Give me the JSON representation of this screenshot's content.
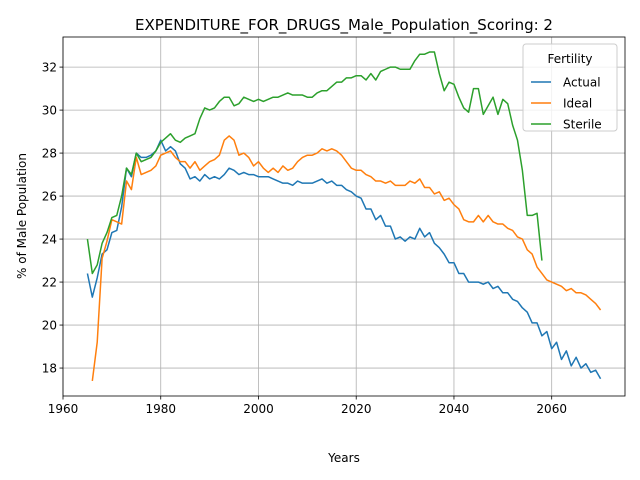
{
  "chart_data": {
    "type": "line",
    "title": "EXPENDITURE_FOR_DRUGS_Male_Population_Scoring: 2",
    "xlabel": "Years",
    "ylabel": "% of Male Population",
    "xlim": [
      1960,
      2075
    ],
    "ylim": [
      16.7,
      33.4
    ],
    "xticks": [
      1960,
      1980,
      2000,
      2020,
      2040,
      2060
    ],
    "yticks": [
      18,
      20,
      22,
      24,
      26,
      28,
      30,
      32
    ],
    "grid": true,
    "legend": {
      "title": "Fertility",
      "placement": "top-right"
    },
    "series": [
      {
        "name": "Actual",
        "color": "#1f77b4",
        "x": [
          1965,
          1966,
          1967,
          1968,
          1969,
          1970,
          1971,
          1972,
          1973,
          1974,
          1975,
          1976,
          1977,
          1978,
          1979,
          1980,
          1981,
          1982,
          1983,
          1984,
          1985,
          1986,
          1987,
          1988,
          1989,
          1990,
          1991,
          1992,
          1993,
          1994,
          1995,
          1996,
          1997,
          1998,
          1999,
          2000,
          2001,
          2002,
          2003,
          2004,
          2005,
          2006,
          2007,
          2008,
          2009,
          2010,
          2011,
          2012,
          2013,
          2014,
          2015,
          2016,
          2017,
          2018,
          2019,
          2020,
          2021,
          2022,
          2023,
          2024,
          2025,
          2026,
          2027,
          2028,
          2029,
          2030,
          2031,
          2032,
          2033,
          2034,
          2035,
          2036,
          2037,
          2038,
          2039,
          2040,
          2041,
          2042,
          2043,
          2044,
          2045,
          2046,
          2047,
          2048,
          2049,
          2050,
          2051,
          2052,
          2053,
          2054,
          2055,
          2056,
          2057,
          2058,
          2059,
          2060,
          2061,
          2062,
          2063,
          2064,
          2065,
          2066,
          2067,
          2068,
          2069,
          2070
        ],
        "values": [
          22.4,
          21.3,
          22.2,
          23.3,
          23.5,
          24.3,
          24.4,
          25.5,
          27.3,
          26.9,
          28.0,
          27.8,
          27.8,
          27.9,
          28.1,
          28.6,
          28.1,
          28.3,
          28.1,
          27.5,
          27.3,
          26.8,
          26.9,
          26.7,
          27.0,
          26.8,
          26.9,
          26.8,
          27.0,
          27.3,
          27.2,
          27.0,
          27.1,
          27.0,
          27.0,
          26.9,
          26.9,
          26.9,
          26.8,
          26.7,
          26.6,
          26.6,
          26.5,
          26.7,
          26.6,
          26.6,
          26.6,
          26.7,
          26.8,
          26.6,
          26.7,
          26.5,
          26.5,
          26.3,
          26.2,
          26.0,
          25.9,
          25.4,
          25.4,
          24.9,
          25.1,
          24.6,
          24.6,
          24.0,
          24.1,
          23.9,
          24.1,
          24.0,
          24.5,
          24.1,
          24.3,
          23.8,
          23.6,
          23.3,
          22.9,
          22.9,
          22.4,
          22.4,
          22.0,
          22.0,
          22.0,
          21.9,
          22.0,
          21.7,
          21.8,
          21.5,
          21.5,
          21.2,
          21.1,
          20.8,
          20.6,
          20.1,
          20.1,
          19.5,
          19.7,
          18.9,
          19.2,
          18.4,
          18.8,
          18.1,
          18.5,
          18.0,
          18.2,
          17.8,
          17.9,
          17.5
        ]
      },
      {
        "name": "Ideal",
        "color": "#ff7f0e",
        "x": [
          1966,
          1967,
          1968,
          1969,
          1970,
          1971,
          1972,
          1973,
          1974,
          1975,
          1976,
          1977,
          1978,
          1979,
          1980,
          1981,
          1982,
          1983,
          1984,
          1985,
          1986,
          1987,
          1988,
          1989,
          1990,
          1991,
          1992,
          1993,
          1994,
          1995,
          1996,
          1997,
          1998,
          1999,
          2000,
          2001,
          2002,
          2003,
          2004,
          2005,
          2006,
          2007,
          2008,
          2009,
          2010,
          2011,
          2012,
          2013,
          2014,
          2015,
          2016,
          2017,
          2018,
          2019,
          2020,
          2021,
          2022,
          2023,
          2024,
          2025,
          2026,
          2027,
          2028,
          2029,
          2030,
          2031,
          2032,
          2033,
          2034,
          2035,
          2036,
          2037,
          2038,
          2039,
          2040,
          2041,
          2042,
          2043,
          2044,
          2045,
          2046,
          2047,
          2048,
          2049,
          2050,
          2051,
          2052,
          2053,
          2054,
          2055,
          2056,
          2057,
          2058,
          2059,
          2060,
          2061,
          2062,
          2063,
          2064,
          2065,
          2066,
          2067,
          2068,
          2069,
          2070
        ],
        "values": [
          17.4,
          19.2,
          23.1,
          23.9,
          24.9,
          24.8,
          24.7,
          26.7,
          26.3,
          27.8,
          27.0,
          27.1,
          27.2,
          27.4,
          27.9,
          28.0,
          28.1,
          27.8,
          27.6,
          27.6,
          27.3,
          27.6,
          27.2,
          27.4,
          27.6,
          27.7,
          27.9,
          28.6,
          28.8,
          28.6,
          27.9,
          28.0,
          27.8,
          27.4,
          27.6,
          27.3,
          27.1,
          27.3,
          27.1,
          27.4,
          27.2,
          27.3,
          27.6,
          27.8,
          27.9,
          27.9,
          28.0,
          28.2,
          28.1,
          28.2,
          28.1,
          27.9,
          27.6,
          27.3,
          27.2,
          27.2,
          27.0,
          26.9,
          26.7,
          26.7,
          26.6,
          26.7,
          26.5,
          26.5,
          26.5,
          26.7,
          26.6,
          26.8,
          26.4,
          26.4,
          26.1,
          26.2,
          25.8,
          25.9,
          25.6,
          25.4,
          24.9,
          24.8,
          24.8,
          25.1,
          24.8,
          25.1,
          24.8,
          24.7,
          24.7,
          24.5,
          24.4,
          24.1,
          24.0,
          23.5,
          23.3,
          22.7,
          22.4,
          22.1,
          22.0,
          21.9,
          21.8,
          21.6,
          21.7,
          21.5,
          21.5,
          21.4,
          21.2,
          21.0,
          20.7
        ]
      },
      {
        "name": "Sterile",
        "color": "#2ca02c",
        "x": [
          1965,
          1966,
          1967,
          1968,
          1969,
          1970,
          1971,
          1972,
          1973,
          1974,
          1975,
          1976,
          1977,
          1978,
          1979,
          1980,
          1981,
          1982,
          1983,
          1984,
          1985,
          1986,
          1987,
          1988,
          1989,
          1990,
          1991,
          1992,
          1993,
          1994,
          1995,
          1996,
          1997,
          1998,
          1999,
          2000,
          2001,
          2002,
          2003,
          2004,
          2005,
          2006,
          2007,
          2008,
          2009,
          2010,
          2011,
          2012,
          2013,
          2014,
          2015,
          2016,
          2017,
          2018,
          2019,
          2020,
          2021,
          2022,
          2023,
          2024,
          2025,
          2026,
          2027,
          2028,
          2029,
          2030,
          2031,
          2032,
          2033,
          2034,
          2035,
          2036,
          2037,
          2038,
          2039,
          2040,
          2041,
          2042,
          2043,
          2044,
          2045,
          2046,
          2047,
          2048,
          2049,
          2050,
          2051,
          2052,
          2053,
          2054,
          2055,
          2056,
          2057,
          2058
        ],
        "values": [
          24.0,
          22.4,
          22.8,
          23.8,
          24.3,
          25.0,
          25.1,
          26.0,
          27.3,
          27.0,
          28.0,
          27.6,
          27.7,
          27.8,
          28.1,
          28.5,
          28.7,
          28.9,
          28.6,
          28.5,
          28.7,
          28.8,
          28.9,
          29.6,
          30.1,
          30.0,
          30.1,
          30.4,
          30.6,
          30.6,
          30.2,
          30.3,
          30.6,
          30.5,
          30.4,
          30.5,
          30.4,
          30.5,
          30.6,
          30.6,
          30.7,
          30.8,
          30.7,
          30.7,
          30.7,
          30.6,
          30.6,
          30.8,
          30.9,
          30.9,
          31.1,
          31.3,
          31.3,
          31.5,
          31.5,
          31.6,
          31.6,
          31.4,
          31.7,
          31.4,
          31.8,
          31.9,
          32.0,
          32.0,
          31.9,
          31.9,
          31.9,
          32.3,
          32.6,
          32.6,
          32.7,
          32.7,
          31.7,
          30.9,
          31.3,
          31.2,
          30.6,
          30.1,
          29.9,
          31.0,
          31.0,
          29.8,
          30.2,
          30.6,
          29.8,
          30.5,
          30.3,
          29.3,
          28.6,
          27.2,
          25.1,
          25.1,
          25.2,
          23.0
        ]
      }
    ]
  }
}
